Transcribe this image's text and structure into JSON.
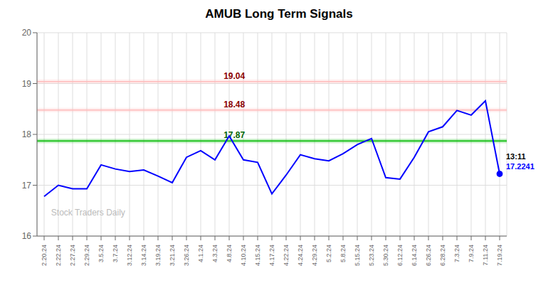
{
  "chart_data": {
    "type": "line",
    "title": "AMUB Long Term Signals",
    "categories": [
      "2.20.24",
      "2.22.24",
      "2.27.24",
      "2.29.24",
      "3.5.24",
      "3.7.24",
      "3.12.24",
      "3.14.24",
      "3.19.24",
      "3.21.24",
      "3.26.24",
      "4.1.24",
      "4.3.24",
      "4.8.24",
      "4.10.24",
      "4.15.24",
      "4.17.24",
      "4.22.24",
      "4.24.24",
      "4.29.24",
      "5.2.24",
      "5.8.24",
      "5.15.24",
      "5.23.24",
      "5.30.24",
      "6.12.24",
      "6.14.24",
      "6.26.24",
      "6.28.24",
      "7.3.24",
      "7.9.24",
      "7.11.24",
      "7.19.24"
    ],
    "values": [
      16.78,
      17.0,
      16.93,
      16.93,
      17.4,
      17.32,
      17.27,
      17.3,
      17.18,
      17.05,
      17.55,
      17.68,
      17.5,
      17.97,
      17.5,
      17.45,
      16.83,
      17.2,
      17.6,
      17.52,
      17.48,
      17.62,
      17.8,
      17.92,
      17.15,
      17.12,
      17.55,
      18.05,
      18.15,
      18.47,
      18.38,
      18.66,
      17.2241
    ],
    "color": "blue",
    "ylim": [
      16,
      20
    ],
    "yticks": [
      16,
      17,
      18,
      19,
      20
    ],
    "grid": true,
    "reference_lines": [
      {
        "value": 19.04,
        "label": "19.04",
        "color": "#ffbbbb"
      },
      {
        "value": 18.48,
        "label": "18.48",
        "color": "#ffbbbb"
      },
      {
        "value": 17.87,
        "label": "17.87",
        "color": "#00bb00"
      }
    ],
    "annotations": [
      {
        "text": "13:11",
        "x": "7.19.24",
        "y": 17.2241
      },
      {
        "text": "17.2241",
        "x": "7.19.24",
        "y": 17.2241
      },
      {
        "text": "Stock Traders Daily"
      }
    ]
  }
}
